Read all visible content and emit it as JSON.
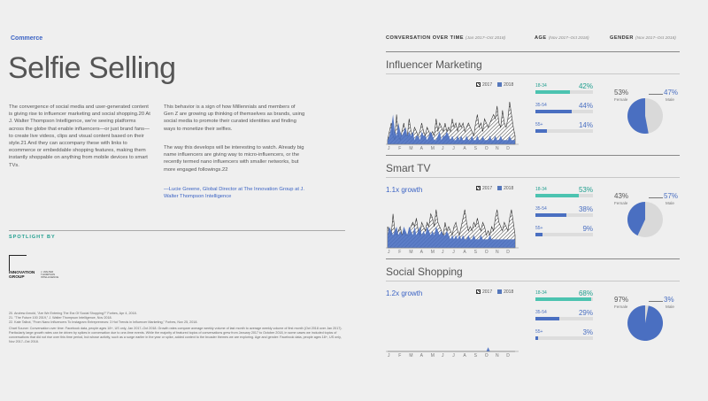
{
  "header": {
    "section": "Commerce",
    "title": "Selfie Selling"
  },
  "col1": {
    "paragraph1": "The convergence of social media and user-generated content is giving rise to influencer marketing and social shopping.20 At J. Walter Thompson Intelligence, we're seeing platforms across the globe that enable influencers—or just brand fans—to create live videos, clips and visual content based on their style.21 And they can accompany these with links to ecommerce or embeddable shopping features, making them instantly shoppable on anything from mobile devices to smart TVs."
  },
  "col2": {
    "paragraph1": "This behavior is a sign of how Millennials and members of Gen Z are growing up thinking of themselves as brands, using social media to promote their curated identities and finding ways to monetize their selfies.",
    "paragraph2": "The way this develops will be interesting to watch. Already big name influencers are giving way to micro-influencers, or the recently termed nano influencers with smaller networks, but more engaged followings.22",
    "quote": "—Lucie Greene, Global Director at The Innovation Group at J. Walter Thompson Intelligence"
  },
  "spotlight": {
    "label": "SPOTLIGHT BY",
    "logo_line1": "INNOVATION",
    "logo_line2": "GROUP",
    "logo_sub": "J. WALTER THOMPSON INTELLIGENCE"
  },
  "footnotes": [
    "20. Andrew Arnold, \"Are We Entering The Era Of Social Shopping?\" Forbes, Apr 4, 2018.",
    "21. \"The Future 100 2019,\" J. Walter Thompson Intelligence, Nov 2018.",
    "22. Kate Talbot, \"From Nano Influencers To Instagram Entrepreneurs: 3 Hot Trends in Influencer Marketing,\" Forbes, Nov 25, 2018.",
    "Chart Source: Conversation over time: Facebook data, people ages 18+, US only, Jan 2017–Oct 2018. Growth rates compare average weekly volume of last month to average weekly volume of first month (Oct 2018 over Jan 2017). Particularly large growth rates can be driven by spikes in conversation due to one-time events. While the majority of featured topics of conversations grew from January 2017 to October 2018, in some cases we included topics of conversations that did not rise over this time period, but whose activity, such as a surge earlier in the year or spike, added context to the broader themes we are exploring. Age and gender: Facebook data, people ages 18+, US only, Nov 2017–Oct 2018."
  ],
  "columns": {
    "conv_label": "CONVERSATION OVER TIME",
    "conv_range": "(Jan 2017–Oct 2018)",
    "age_label": "AGE",
    "age_range": "(Nov 2017–Oct 2018)",
    "gender_label": "GENDER",
    "gender_range": "(Nov 2017–Oct 2018)"
  },
  "legend": {
    "y2017": "2017",
    "y2018": "2018"
  },
  "months": "J F M A M J J A S O N D",
  "colors": {
    "teal": "#4cc3b0",
    "blue": "#4a6fc1",
    "grey": "#d9d9d9"
  },
  "rows": [
    {
      "title": "Influencer Marketing",
      "growth": "",
      "ages": [
        {
          "label": "18-34",
          "pct": "42%",
          "value": 42
        },
        {
          "label": "35-54",
          "pct": "44%",
          "value": 44
        },
        {
          "label": "55+",
          "pct": "14%",
          "value": 14
        }
      ],
      "female_pct": "53%",
      "female_label": "Female",
      "female_value": 53,
      "male_pct": "47%",
      "male_label": "Male",
      "male_value": 47,
      "s2017": [
        0.1,
        0.3,
        0.5,
        0.2,
        0.1,
        0.7,
        0.2,
        0.1,
        0.3,
        0.5,
        0.2,
        0.2,
        0.6,
        0.3,
        0.2,
        0.4,
        0.3,
        0.2,
        0.3,
        0.5,
        0.3,
        0.2,
        0.4,
        0.3,
        0.2,
        0.3,
        0.2,
        0.6,
        0.3,
        0.5,
        0.4,
        0.3,
        0.5,
        0.3,
        0.4,
        0.3,
        0.6,
        0.4,
        0.5,
        0.3,
        0.5,
        0.4,
        0.5,
        0.3,
        0.4,
        0.5,
        0.4,
        0.3,
        0.2,
        0.5,
        0.7,
        0.4,
        0.5,
        0.3,
        0.6,
        0.5,
        0.4,
        0.5,
        0.6,
        0.7,
        0.6,
        0.9,
        0.5,
        0.4,
        0.8,
        0.5,
        0.4,
        0.6,
        1.0,
        0.7,
        0.4,
        0.2
      ],
      "s2018": [
        0.1,
        0.2,
        0.4,
        0.7,
        0.3,
        0.2,
        0.5,
        0.3,
        0.2,
        0.3,
        0.4,
        0.2,
        0.3,
        0.2,
        0.3,
        0.1,
        0.2,
        0.2,
        0.1,
        0.3,
        0.2,
        0.2,
        0.1,
        0.2,
        0.3,
        0.2,
        0.1,
        0.1,
        0.2,
        0.3,
        0.1,
        0.2,
        0.2,
        0.3,
        0.2,
        0.1,
        0.2,
        0.1,
        0.1,
        0.2,
        0.1,
        0.2,
        0.1,
        0.1,
        0.2,
        0.1,
        0.1,
        0.2,
        0.1,
        0.1,
        0.2,
        0.1,
        0.1,
        0.2,
        0.1,
        0.1,
        0.1,
        0.2,
        0.1,
        0.1,
        0.2,
        0.1,
        0.1,
        0.2,
        0.1,
        0.1,
        0.1,
        0.1,
        0.2,
        0.1,
        0.1,
        0.1
      ]
    },
    {
      "title": "Smart TV",
      "growth": "1.1x growth",
      "ages": [
        {
          "label": "18-34",
          "pct": "53%",
          "value": 53
        },
        {
          "label": "35-54",
          "pct": "38%",
          "value": 38
        },
        {
          "label": "55+",
          "pct": "9%",
          "value": 9
        }
      ],
      "female_pct": "43%",
      "female_label": "Female",
      "female_value": 43,
      "male_pct": "57%",
      "male_label": "Male",
      "male_value": 57,
      "s2017": [
        0.5,
        0.4,
        0.3,
        0.8,
        0.4,
        0.3,
        0.4,
        0.5,
        0.3,
        0.4,
        0.3,
        0.3,
        0.4,
        0.5,
        0.6,
        0.5,
        0.7,
        0.4,
        0.3,
        0.6,
        0.5,
        0.4,
        0.6,
        0.5,
        0.8,
        0.7,
        0.5,
        0.9,
        0.6,
        0.5,
        0.4,
        0.3,
        0.6,
        0.4,
        0.5,
        0.4,
        0.3,
        0.5,
        0.6,
        0.4,
        0.3,
        0.5,
        0.7,
        0.9,
        0.6,
        0.4,
        0.5,
        0.4,
        0.6,
        0.5,
        0.7,
        0.5,
        0.4,
        0.6,
        0.5,
        0.3,
        0.4,
        0.3,
        0.5,
        0.4,
        0.7,
        0.9,
        0.6,
        0.5,
        0.4,
        0.6,
        0.5,
        0.4,
        0.7,
        0.9,
        0.6,
        0.3
      ],
      "s2018": [
        0.3,
        0.5,
        0.4,
        0.3,
        0.4,
        0.5,
        0.3,
        0.4,
        0.3,
        0.5,
        0.4,
        0.3,
        0.5,
        0.4,
        0.3,
        0.5,
        0.3,
        0.4,
        0.5,
        0.3,
        0.4,
        0.3,
        0.5,
        0.4,
        0.3,
        0.4,
        0.3,
        0.5,
        0.4,
        0.3,
        0.4,
        0.3,
        0.3,
        0.4,
        0.3,
        0.2,
        0.3,
        0.2,
        0.3,
        0.2,
        0.3,
        0.2,
        0.3,
        0.2,
        0.2,
        0.3,
        0.2,
        0.2,
        0.3,
        0.2,
        0.2,
        0.2,
        0.3,
        0.2,
        0.2,
        0.2,
        0.2,
        0.3,
        0.2,
        0.2,
        0.2,
        0.2,
        0.2,
        0.2,
        0.2,
        0.2,
        0.2,
        0.2,
        0.2,
        0.2,
        0.2,
        0.2
      ]
    },
    {
      "title": "Social Shopping",
      "growth": "1.2x growth",
      "ages": [
        {
          "label": "18-34",
          "pct": "68%",
          "value": 68
        },
        {
          "label": "35-54",
          "pct": "29%",
          "value": 29
        },
        {
          "label": "55+",
          "pct": "3%",
          "value": 3
        }
      ],
      "female_pct": "97%",
      "female_label": "Female",
      "female_value": 97,
      "male_pct": "3%",
      "male_label": "Male",
      "male_value": 3,
      "s2017": [
        0.0,
        0.0,
        0.0,
        0.0,
        0.0,
        0.0,
        0.0,
        0.0,
        0.0,
        0.0,
        0.0,
        0.0,
        0.0,
        0.0,
        0.0,
        0.0,
        0.0,
        0.0,
        0.0,
        0.0,
        0.0,
        0.0,
        0.0,
        0.0,
        0.0,
        0.0,
        0.0,
        0.0,
        0.0,
        0.0,
        0.0,
        0.0,
        0.0,
        0.0,
        0.0,
        0.0,
        0.0,
        0.0,
        0.0,
        0.0,
        0.0,
        0.0,
        0.0,
        0.0,
        0.0,
        0.0,
        0.0,
        0.0,
        0.0,
        0.0,
        0.0,
        0.0,
        0.0,
        0.0,
        0.0,
        0.0,
        0.0,
        0.0,
        0.0,
        0.0,
        0.0,
        0.0,
        0.0,
        0.0,
        0.0,
        0.0,
        0.0,
        0.0,
        0.0,
        0.0,
        0.0,
        0.0
      ],
      "s2018": [
        0.0,
        0.0,
        0.0,
        0.0,
        0.0,
        0.0,
        0.0,
        0.0,
        0.0,
        0.0,
        0.0,
        0.0,
        0.0,
        0.0,
        0.0,
        0.0,
        0.0,
        0.0,
        0.0,
        0.0,
        0.0,
        0.0,
        0.0,
        0.0,
        0.0,
        0.0,
        0.0,
        0.0,
        0.0,
        0.0,
        0.0,
        0.0,
        0.0,
        0.0,
        0.0,
        0.0,
        0.0,
        0.0,
        0.0,
        0.0,
        0.0,
        0.0,
        0.0,
        0.0,
        0.0,
        0.0,
        0.0,
        0.0,
        0.0,
        0.0,
        0.0,
        0.0,
        0.0,
        0.0,
        0.0,
        0.0,
        0.1,
        0.0,
        0.0,
        0.0,
        0.0,
        0.0,
        0.0,
        0.0,
        0.0,
        0.0,
        0.0,
        0.0,
        0.0,
        0.0,
        0.0,
        0.0
      ]
    }
  ]
}
